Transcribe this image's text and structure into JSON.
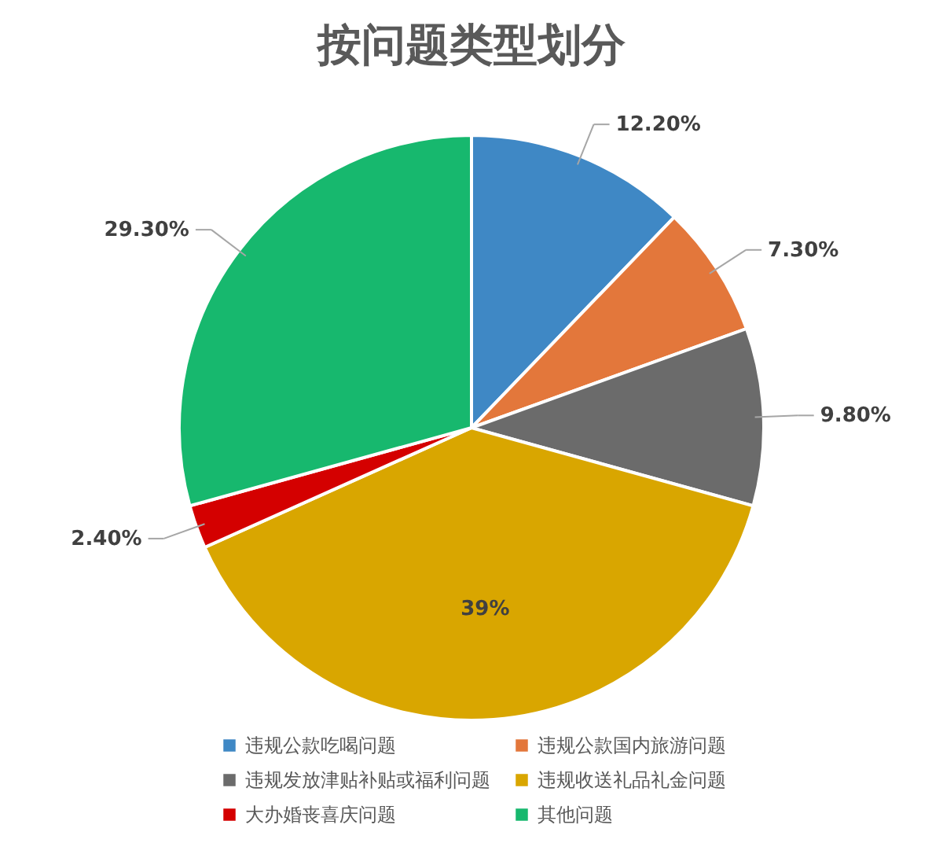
{
  "chart_data": {
    "type": "pie",
    "title": "按问题类型划分",
    "categories": [
      "违规公款吃喝问题",
      "违规公款国内旅游问题",
      "违规发放津贴补贴或福利问题",
      "违规收送礼品礼金问题",
      "大办婚丧喜庆问题",
      "其他问题"
    ],
    "values": [
      12.2,
      7.3,
      9.8,
      39,
      2.4,
      29.3
    ],
    "value_labels": [
      "12.20%",
      "7.30%",
      "9.80%",
      "39%",
      "2.40%",
      "29.30%"
    ],
    "colors": [
      "#3f88c5",
      "#e3773b",
      "#6b6b6b",
      "#d9a600",
      "#d40000",
      "#17b86e"
    ],
    "legend": "bottom"
  }
}
